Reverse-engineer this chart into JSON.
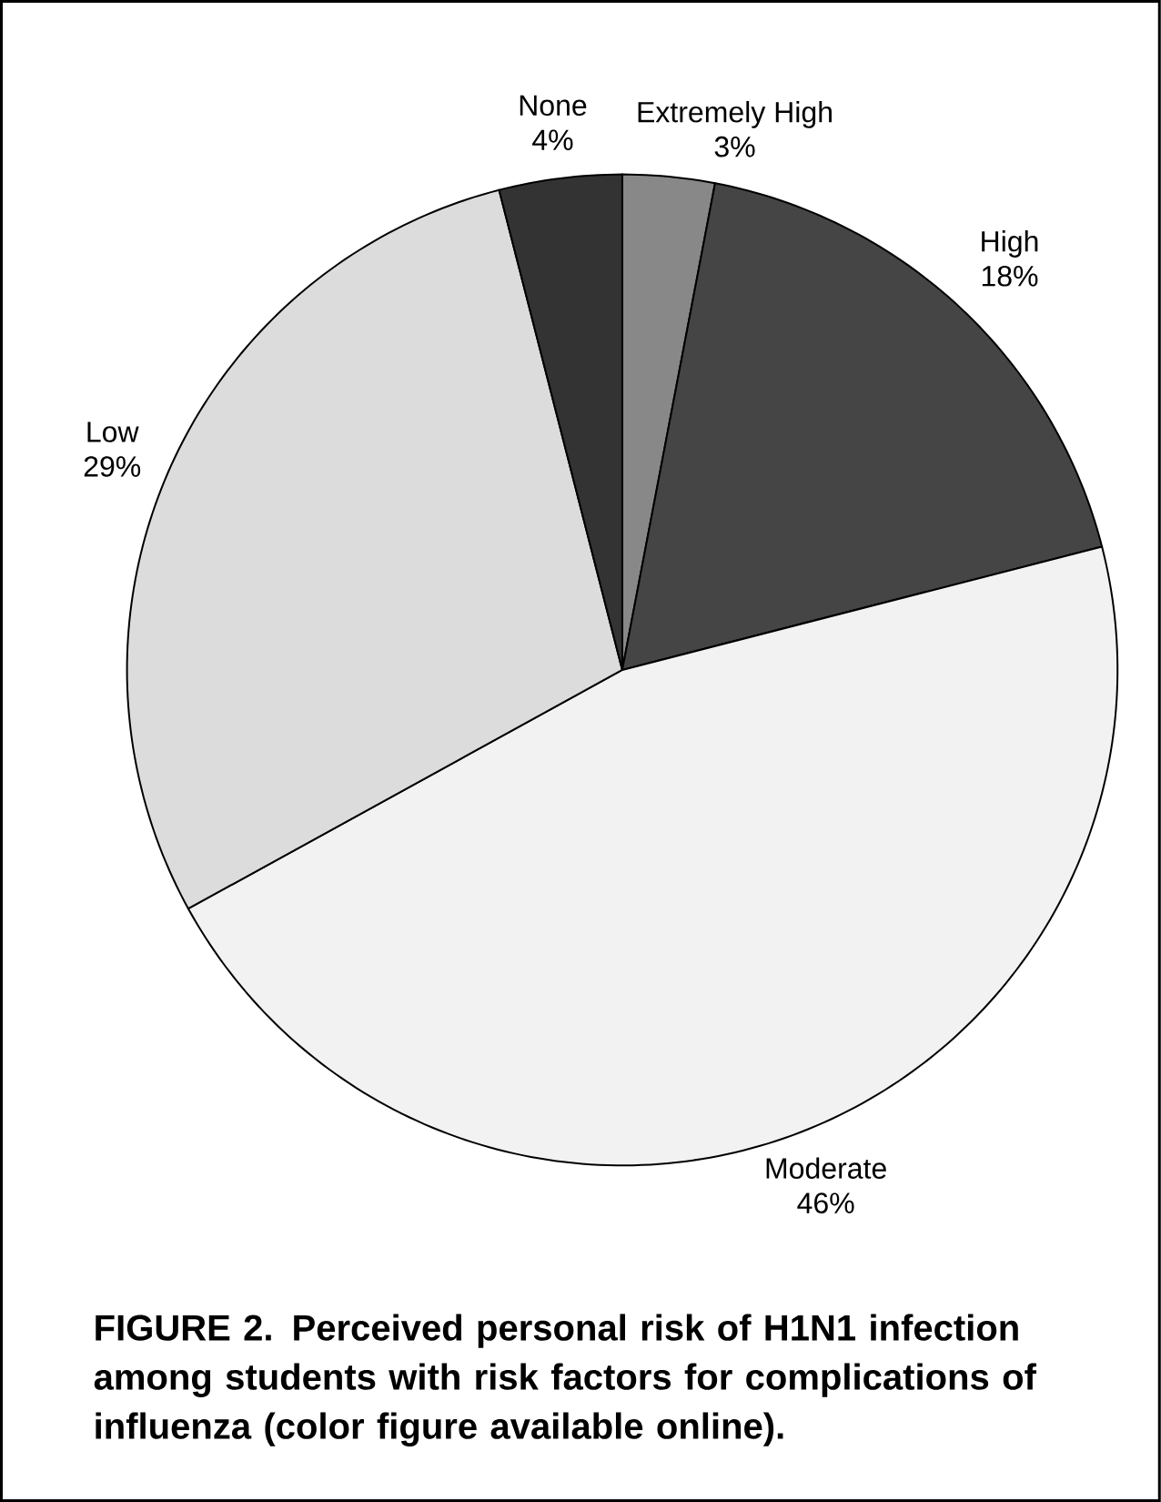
{
  "chart_data": {
    "type": "pie",
    "categories": [
      "Extremely High",
      "High",
      "Moderate",
      "Low",
      "None"
    ],
    "values": [
      3,
      18,
      46,
      29,
      4
    ],
    "value_labels": [
      "3%",
      "18%",
      "46%",
      "29%",
      "4%"
    ],
    "colors": [
      "#888888",
      "#454545",
      "#f2f2f2",
      "#dcdcdc",
      "#333333"
    ],
    "annotations": [
      "FIGURE 2. Perceived personal risk of H1N1 infection among students with risk factors for complications of influenza (color figure available online)."
    ]
  }
}
